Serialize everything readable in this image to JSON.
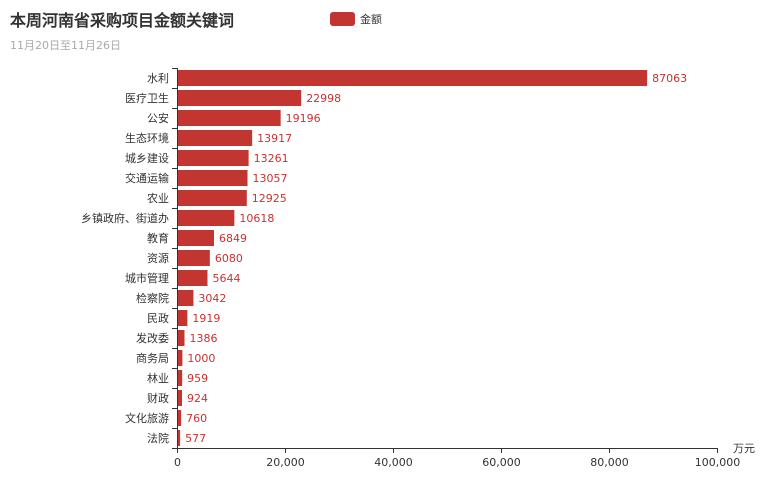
{
  "colors": {
    "bar": "#c23531",
    "axis": "#333333",
    "title": "#333333",
    "subtitle": "#aaaaaa"
  },
  "chart_data": {
    "type": "bar",
    "orientation": "horizontal",
    "title": "本周河南省采购项目金额关键词",
    "subtitle": "11月20日至11月26日",
    "legend": {
      "label": "金额",
      "position": "top-center"
    },
    "x_axis_name": "万元",
    "xlim": [
      0,
      100000
    ],
    "x_ticks": [
      "0",
      "20,000",
      "40,000",
      "60,000",
      "80,000",
      "100,000"
    ],
    "grid": false,
    "categories": [
      "水利",
      "医疗卫生",
      "公安",
      "生态环境",
      "城乡建设",
      "交通运输",
      "农业",
      "乡镇政府、街道办",
      "教育",
      "资源",
      "城市管理",
      "检察院",
      "民政",
      "发改委",
      "商务局",
      "林业",
      "财政",
      "文化旅游",
      "法院"
    ],
    "series": [
      {
        "name": "金额",
        "values": [
          87063,
          22998,
          19196,
          13917,
          13261,
          13057,
          12925,
          10618,
          6849,
          6080,
          5644,
          3042,
          1919,
          1386,
          1000,
          959,
          924,
          760,
          577
        ]
      }
    ]
  }
}
